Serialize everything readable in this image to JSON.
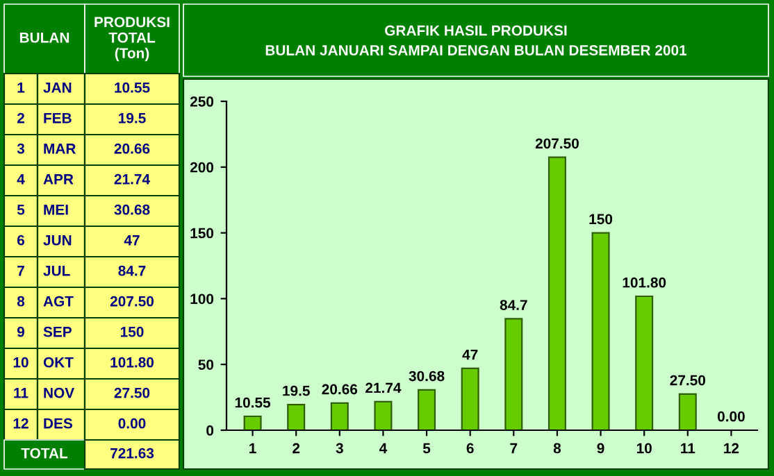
{
  "chart_data": {
    "type": "bar",
    "title": "GRAFIK HASIL PRODUKSI\nBULAN JANUARI SAMPAI DENGAN BULAN DESEMBER 2001",
    "categories": [
      "1",
      "2",
      "3",
      "4",
      "5",
      "6",
      "7",
      "8",
      "9",
      "10",
      "11",
      "12"
    ],
    "values": [
      10.55,
      19.5,
      20.66,
      21.74,
      30.68,
      47,
      84.7,
      207.5,
      150,
      101.8,
      27.5,
      0.0
    ],
    "value_labels": [
      "10.55",
      "19.5",
      "20.66",
      "21.74",
      "30.68",
      "47",
      "84.7",
      "207.50",
      "150",
      "101.80",
      "27.50",
      "0.00"
    ],
    "color": "#66cc00",
    "ylim": [
      0,
      250
    ],
    "yticks": [
      0,
      50,
      100,
      150,
      200,
      250
    ],
    "grid": false,
    "annotations": [
      "BULAN",
      "PRODUKSI\nTOTAL\n(Ton)",
      "JAN",
      "FEB",
      "MAR",
      "APR",
      "MEI",
      "JUN",
      "JUL",
      "AGT",
      "SEP",
      "OKT",
      "NOV",
      "DES",
      "TOTAL",
      "721.63"
    ]
  }
}
